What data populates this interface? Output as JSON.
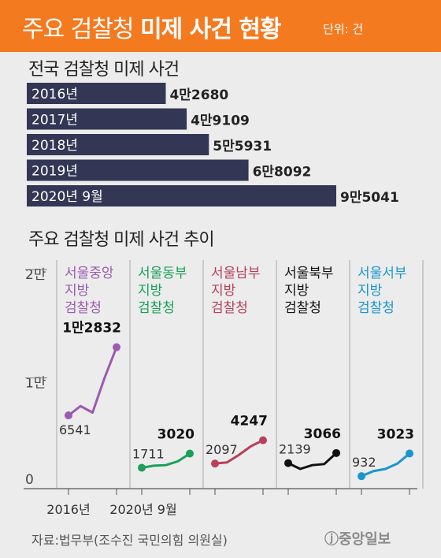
{
  "header": {
    "title_normal": "주요 검찰청 ",
    "title_bold": "미제 사건 현황",
    "unit": "단위: 건"
  },
  "colors": {
    "orange": "#f47a20",
    "navy": "#333654",
    "purple": "#9b5bb0",
    "green": "#1aa05a",
    "red": "#b7405a",
    "black": "#111111",
    "blue": "#1b95d0"
  },
  "chart_data": [
    {
      "type": "bar",
      "title": "전국 검찰청 미제 사건",
      "categories": [
        "2016년",
        "2017년",
        "2018년",
        "2019년",
        "2020년 9월"
      ],
      "values": [
        42680,
        49109,
        55931,
        68092,
        95041
      ],
      "labels": [
        "4만2680",
        "4만9109",
        "5만5931",
        "6만8092",
        "9만5041"
      ]
    },
    {
      "type": "line",
      "title": "주요 검찰청 미제 사건 추이",
      "ylim": [
        0,
        20000
      ],
      "yticks": [
        {
          "value": 20000,
          "label": "2만"
        },
        {
          "value": 10000,
          "label": "1만"
        },
        {
          "value": 0,
          "label": "0"
        }
      ],
      "xlabels": [
        "2016년",
        "2020년 9월"
      ],
      "series": [
        {
          "name": "서울중앙 지방 검찰청",
          "lines": [
            "서울중앙",
            "지방",
            "검찰청"
          ],
          "color": "#9b5bb0",
          "values": [
            6541,
            7400,
            6800,
            10000,
            12832
          ],
          "start_label": "6541",
          "end_label": "1만2832"
        },
        {
          "name": "서울동부 지방 검찰청",
          "lines": [
            "서울동부",
            "지방",
            "검찰청"
          ],
          "color": "#1aa05a",
          "values": [
            1711,
            1900,
            1950,
            2300,
            3020
          ],
          "start_label": "1711",
          "end_label": "3020"
        },
        {
          "name": "서울남부 지방 검찰청",
          "lines": [
            "서울남부",
            "지방",
            "검찰청"
          ],
          "color": "#b7405a",
          "values": [
            2097,
            2200,
            2900,
            3700,
            4247
          ],
          "start_label": "2097",
          "end_label": "4247"
        },
        {
          "name": "서울북부 지방 검찰청",
          "lines": [
            "서울북부",
            "지방",
            "검찰청"
          ],
          "color": "#111111",
          "values": [
            2139,
            1600,
            1950,
            2050,
            3066
          ],
          "start_label": "2139",
          "end_label": "3066"
        },
        {
          "name": "서울서부 지방 검찰청",
          "lines": [
            "서울서부",
            "지방",
            "검찰청"
          ],
          "color": "#1b95d0",
          "values": [
            932,
            1400,
            1600,
            2100,
            3023
          ],
          "start_label": "932",
          "end_label": "3023"
        }
      ]
    }
  ],
  "footer": {
    "source": "자료:법무부(조수진 국민의힘 의원실)",
    "logo": "ⓙ중앙일보"
  }
}
